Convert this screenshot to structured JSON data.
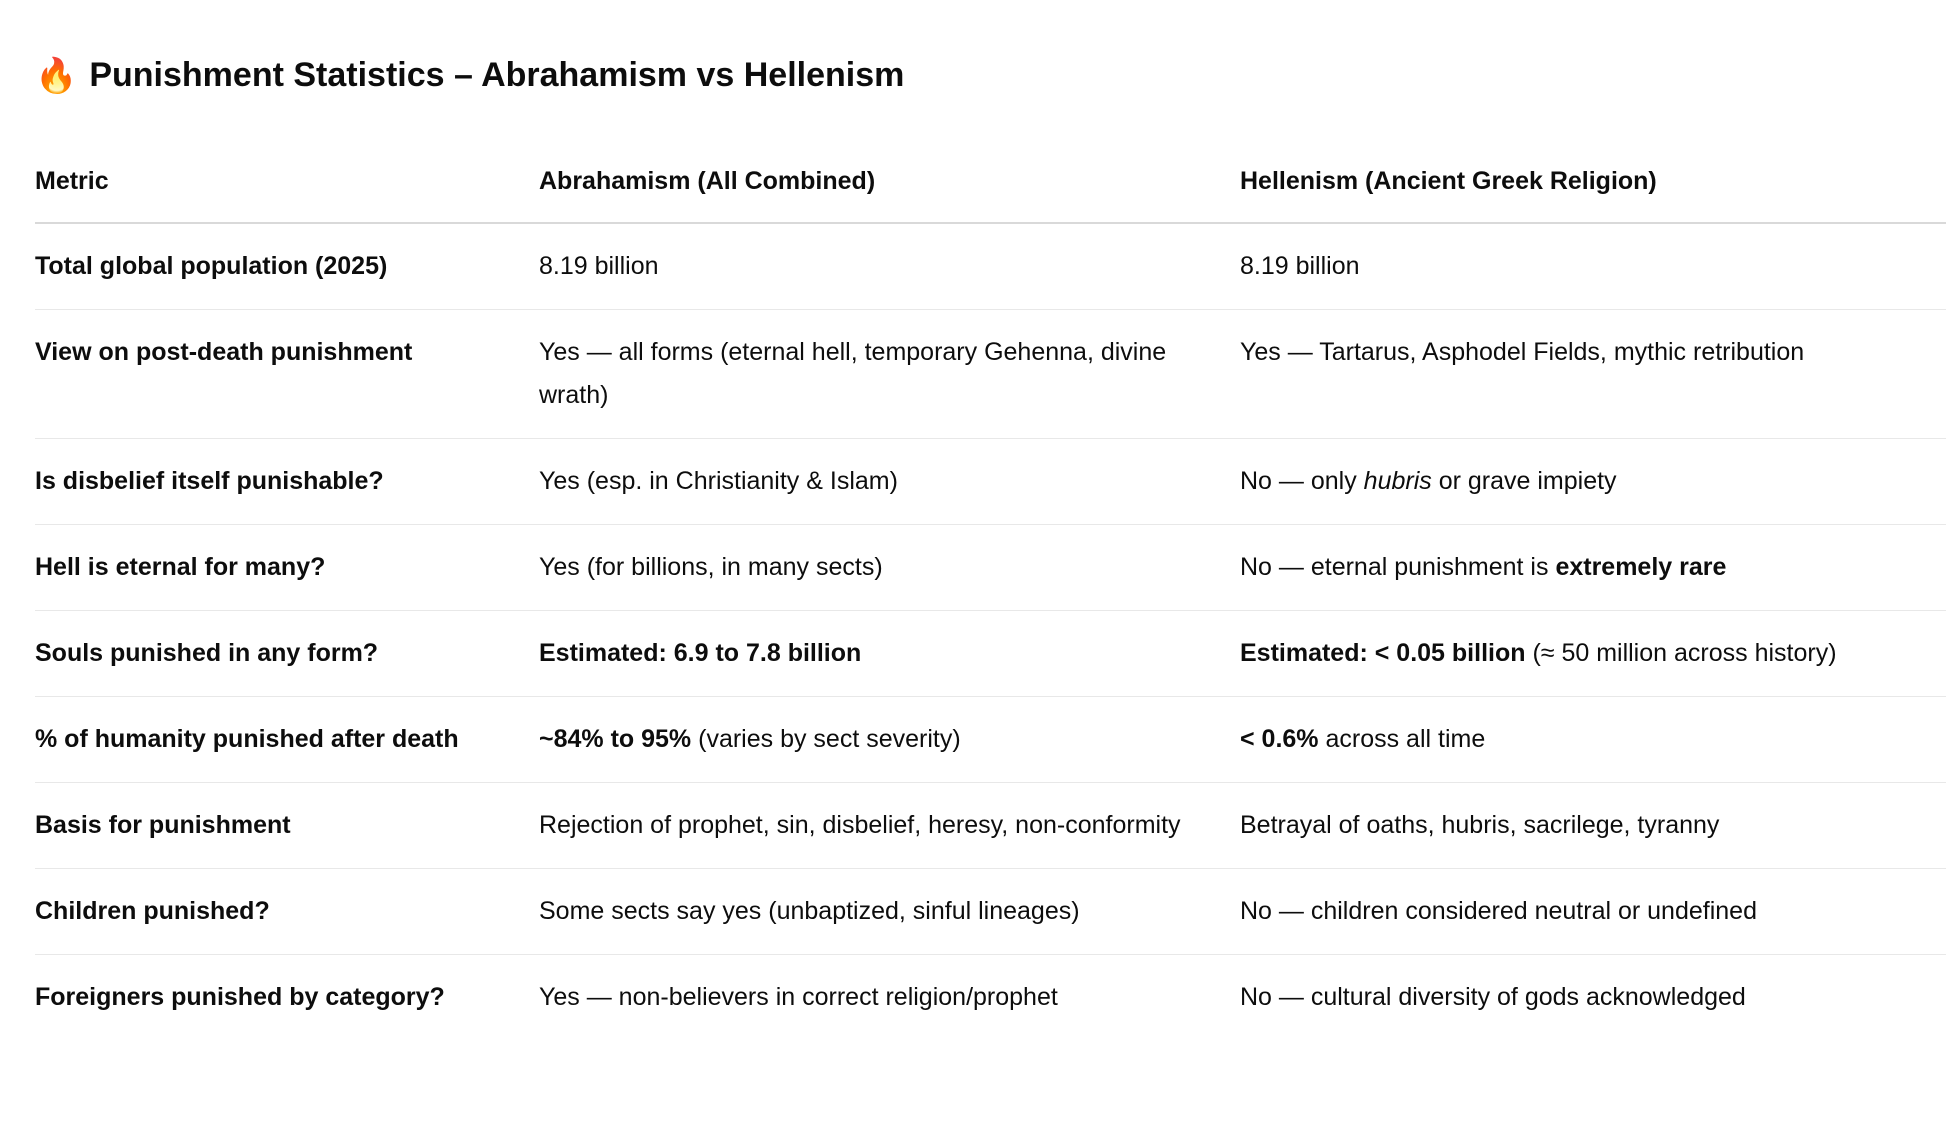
{
  "title": {
    "icon": "fire-icon",
    "emoji": "🔥",
    "text": "Punishment Statistics – Abrahamism vs Hellenism"
  },
  "table": {
    "headers": [
      "Metric",
      "Abrahamism (All Combined)",
      "Hellenism (Ancient Greek Religion)"
    ],
    "rows": [
      {
        "metric": "Total global population (2025)",
        "a": [
          {
            "t": "8.19 billion"
          }
        ],
        "h": [
          {
            "t": "8.19 billion"
          }
        ]
      },
      {
        "metric": "View on post-death punishment",
        "a": [
          {
            "t": "Yes — all forms (eternal hell, temporary Gehenna, divine wrath)"
          }
        ],
        "h": [
          {
            "t": "Yes — Tartarus, Asphodel Fields, mythic retribution"
          }
        ]
      },
      {
        "metric": "Is disbelief itself punishable?",
        "a": [
          {
            "t": "Yes (esp. in Christianity & Islam)"
          }
        ],
        "h": [
          {
            "t": "No — only "
          },
          {
            "t": "hubris",
            "s": "i"
          },
          {
            "t": " or grave impiety"
          }
        ]
      },
      {
        "metric": "Hell is eternal for many?",
        "a": [
          {
            "t": "Yes (for billions, in many sects)"
          }
        ],
        "h": [
          {
            "t": "No — eternal punishment is "
          },
          {
            "t": "extremely rare",
            "s": "b"
          }
        ]
      },
      {
        "metric": "Souls punished in any form?",
        "a": [
          {
            "t": "Estimated: 6.9 to 7.8 billion",
            "s": "b"
          }
        ],
        "h": [
          {
            "t": "Estimated: < 0.05 billion",
            "s": "b"
          },
          {
            "t": " (≈ 50 million across history)"
          }
        ]
      },
      {
        "metric": "% of humanity punished after death",
        "a": [
          {
            "t": "~84% to 95%",
            "s": "b"
          },
          {
            "t": " (varies by sect severity)"
          }
        ],
        "h": [
          {
            "t": "< 0.6%",
            "s": "b"
          },
          {
            "t": " across all time"
          }
        ]
      },
      {
        "metric": "Basis for punishment",
        "a": [
          {
            "t": "Rejection of prophet, sin, disbelief, heresy, non-conformity"
          }
        ],
        "h": [
          {
            "t": "Betrayal of oaths, hubris, sacrilege, tyranny"
          }
        ]
      },
      {
        "metric": "Children punished?",
        "a": [
          {
            "t": "Some sects say yes (unbaptized, sinful lineages)"
          }
        ],
        "h": [
          {
            "t": "No — children considered neutral or undefined"
          }
        ]
      },
      {
        "metric": "Foreigners punished by category?",
        "a": [
          {
            "t": "Yes — non-believers in correct religion/prophet"
          }
        ],
        "h": [
          {
            "t": "No — cultural diversity of gods acknowledged"
          }
        ]
      }
    ]
  }
}
